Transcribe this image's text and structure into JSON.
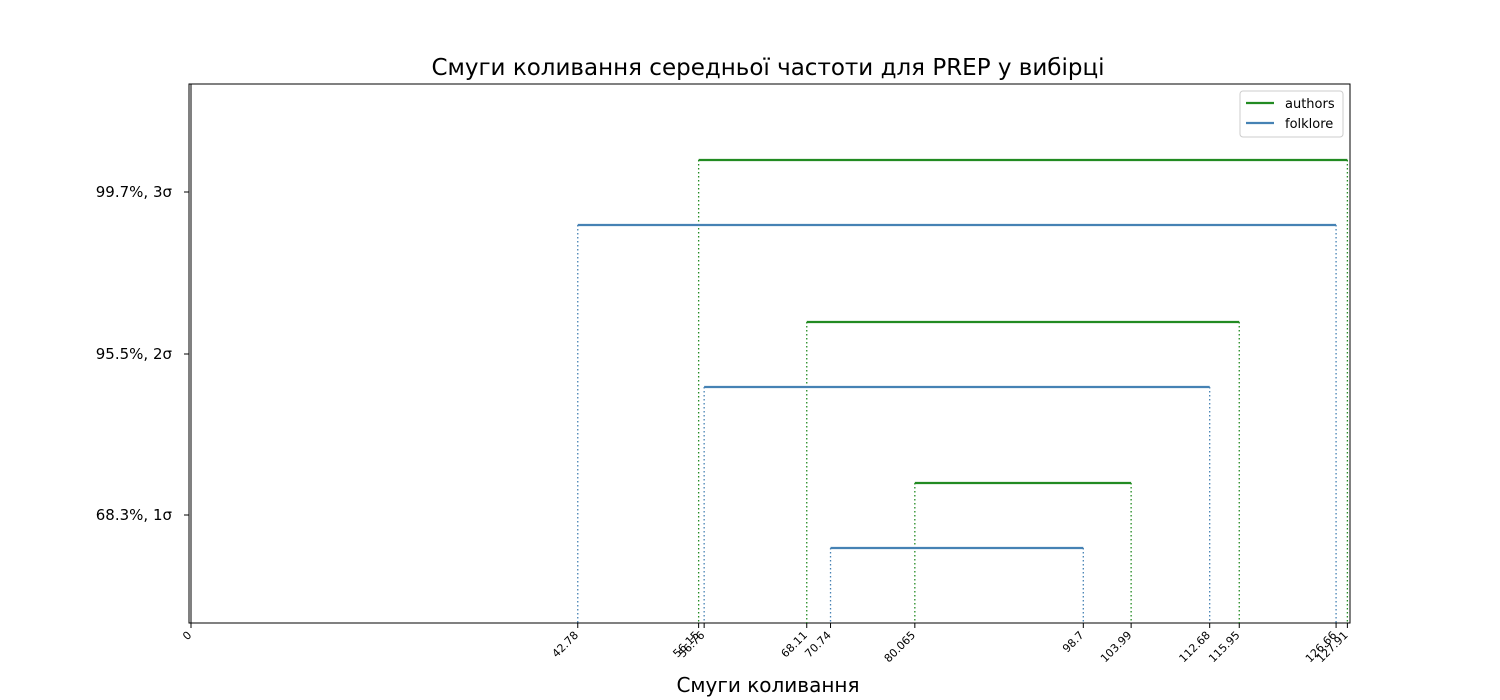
{
  "chart_data": {
    "type": "interval",
    "title": "Смуги коливання середньої частоти для PREP у вибірці",
    "xlabel": "Смуги коливання",
    "ylabel": "",
    "xlim": [
      0,
      128.2
    ],
    "y_ticks": [
      {
        "label": "68.3%,  1σ"
      },
      {
        "label": "95.5%,  2σ"
      },
      {
        "label": "99.7%,  3σ"
      }
    ],
    "x_tick_labels": [
      "0",
      "42.78",
      "56.15",
      "56.76",
      "68.11",
      "70.74",
      "80.065",
      "98.7",
      "103.99",
      "112.68",
      "115.95",
      "126.66",
      "127.91"
    ],
    "x_tick_values": [
      0,
      42.78,
      56.15,
      56.76,
      68.11,
      70.74,
      80.065,
      98.7,
      103.99,
      112.68,
      115.95,
      126.66,
      127.91
    ],
    "legend_position": "top-right",
    "series": [
      {
        "name": "authors",
        "color": "#228b22",
        "intervals": [
          {
            "level": "1σ",
            "low": 80.065,
            "high": 103.99
          },
          {
            "level": "2σ",
            "low": 68.11,
            "high": 115.95
          },
          {
            "level": "3σ",
            "low": 56.15,
            "high": 127.91
          }
        ]
      },
      {
        "name": "folklore",
        "color": "#4682b4",
        "intervals": [
          {
            "level": "1σ",
            "low": 70.74,
            "high": 98.7
          },
          {
            "level": "2σ",
            "low": 56.76,
            "high": 112.68
          },
          {
            "level": "3σ",
            "low": 42.78,
            "high": 126.66
          }
        ]
      }
    ]
  }
}
